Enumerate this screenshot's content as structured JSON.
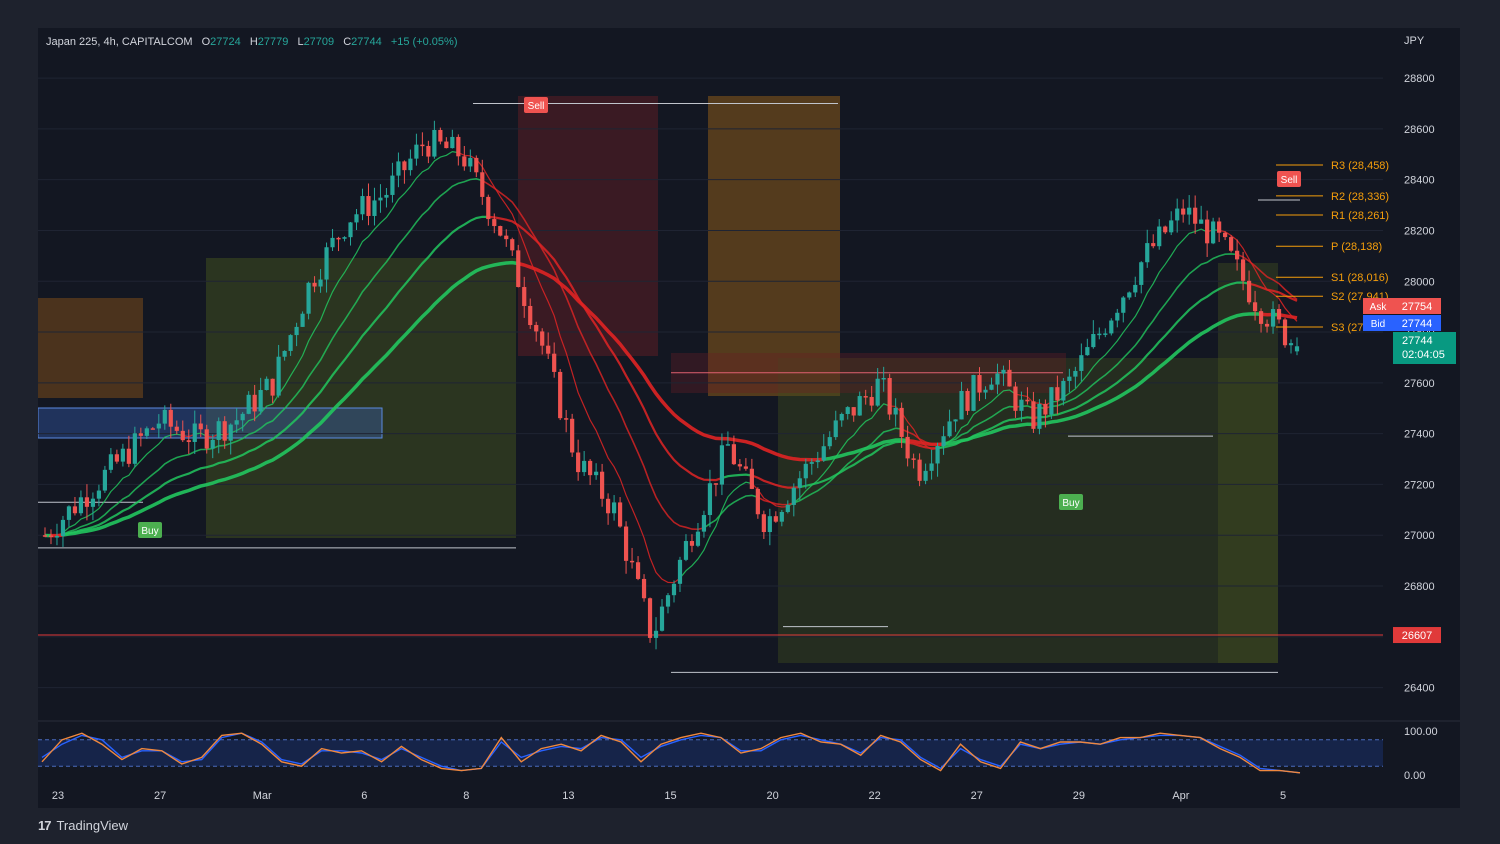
{
  "header": {
    "symbol": "Japan 225, 4h, CAPITALCOM",
    "o_label": "O",
    "o": "27724",
    "h_label": "H",
    "h": "27779",
    "l_label": "L",
    "l": "27709",
    "c_label": "C",
    "c": "27744",
    "change": "+15 (+0.05%)"
  },
  "currency": "JPY",
  "branding": "TradingView",
  "colors": {
    "bull": "#26a69a",
    "bear": "#ef5350",
    "ema_green": "#22c55e",
    "ema_red": "#e02424",
    "pivot": "#f59e0b",
    "ask": "#ef5350",
    "bid": "#2962ff",
    "last": "#089981",
    "level": "#e03a3a",
    "k_line": "#f0883e",
    "d_line": "#2962ff"
  },
  "chart_data": {
    "type": "candlestick",
    "timeframe": "4h",
    "y_range": [
      26300,
      28950
    ],
    "y_ticks": [
      26400,
      26600,
      26800,
      27000,
      27200,
      27400,
      27600,
      27800,
      28000,
      28200,
      28400,
      28600,
      28800
    ],
    "x_tick_labels": [
      "23",
      "27",
      "Mar",
      "6",
      "8",
      "13",
      "15",
      "20",
      "22",
      "27",
      "29",
      "Apr",
      "5"
    ],
    "last_bar": {
      "open": 27724,
      "high": 27779,
      "low": 27709,
      "close": 27744,
      "change": "+15 (+0.05%)"
    },
    "price_path": [
      27000,
      27150,
      27300,
      27450,
      27380,
      27450,
      27600,
      28000,
      28250,
      28350,
      28550,
      28500,
      28200,
      27800,
      27300,
      27100,
      26600,
      27000,
      27350,
      27050,
      27250,
      27450,
      27600,
      27250,
      27500,
      27650,
      27450,
      27600,
      27850,
      28100,
      28280,
      28150,
      27900,
      27744
    ],
    "pivot_levels": [
      {
        "label": "R3 (28,458)",
        "value": 28458
      },
      {
        "label": "R2 (28,336)",
        "value": 28336
      },
      {
        "label": "R1 (28,261)",
        "value": 28261
      },
      {
        "label": "P (28,138)",
        "value": 28138
      },
      {
        "label": "S1 (28,016)",
        "value": 28016
      },
      {
        "label": "S2 (27,941)",
        "value": 27941
      },
      {
        "label": "S3 (27",
        "value": 27820
      }
    ],
    "price_tags": [
      {
        "name": "Ask",
        "value": "27754"
      },
      {
        "name": "Bid",
        "value": "27744"
      },
      {
        "name": "last",
        "value": "27744",
        "countdown": "02:04:05"
      }
    ],
    "horizontal_level": {
      "value": 26607,
      "label": "26607"
    },
    "signals": [
      {
        "label": "Buy"
      },
      {
        "label": "Sell"
      },
      {
        "label": "Sell"
      },
      {
        "label": "Buy"
      }
    ],
    "oscillator": {
      "y_ticks": [
        "100.00",
        "0.00"
      ],
      "k": [
        30,
        80,
        95,
        70,
        35,
        60,
        55,
        25,
        40,
        90,
        95,
        70,
        30,
        20,
        60,
        50,
        55,
        30,
        65,
        35,
        15,
        10,
        15,
        85,
        30,
        60,
        70,
        55,
        90,
        75,
        30,
        70,
        85,
        95,
        85,
        50,
        60,
        85,
        95,
        75,
        70,
        45,
        90,
        75,
        35,
        10,
        70,
        30,
        15,
        75,
        60,
        75,
        75,
        70,
        85,
        85,
        95,
        90,
        85,
        60,
        40,
        10,
        10,
        5
      ],
      "d": [
        40,
        70,
        90,
        80,
        40,
        55,
        55,
        30,
        35,
        85,
        95,
        75,
        35,
        25,
        55,
        55,
        50,
        35,
        60,
        40,
        20,
        10,
        15,
        75,
        40,
        55,
        65,
        60,
        85,
        80,
        40,
        65,
        80,
        90,
        85,
        55,
        55,
        80,
        90,
        80,
        70,
        50,
        85,
        80,
        40,
        15,
        60,
        35,
        20,
        70,
        60,
        70,
        75,
        70,
        80,
        85,
        90,
        90,
        85,
        65,
        45,
        15,
        10,
        5
      ],
      "upper_band": 80,
      "lower_band": 20
    }
  }
}
